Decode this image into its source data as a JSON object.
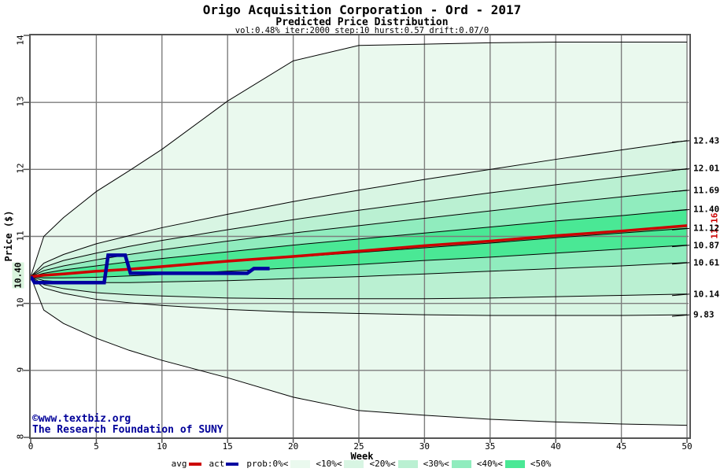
{
  "header": {
    "title": "Origo Acquisition Corporation - Ord - 2017",
    "subtitle": "Predicted Price Distribution",
    "params_line": "vol:0.48% iter:2000 step:10 hurst:0.57 drift:0.07/0"
  },
  "watermark": {
    "line1": "©www.textbiz.org",
    "line2": "The Research Foundation of SUNY",
    "color": "#000099"
  },
  "legend": {
    "items": [
      {
        "label": "avg",
        "swatch": "line",
        "color": "#cc0000"
      },
      {
        "label": "act",
        "swatch": "line",
        "color": "#0000a0"
      },
      {
        "label": "prob:0%<",
        "swatch": "box",
        "color": "#eaf9ee"
      },
      {
        "label": "<10%<",
        "swatch": "box",
        "color": "#d8f5e3"
      },
      {
        "label": "<20%<",
        "swatch": "box",
        "color": "#baf0d2"
      },
      {
        "label": "<30%<",
        "swatch": "box",
        "color": "#90ecbe"
      },
      {
        "label": "<40%<",
        "swatch": "box",
        "color": "#4ae895"
      },
      {
        "label": "<50%",
        "swatch": "none",
        "color": null
      }
    ]
  },
  "chart_data": {
    "type": "line",
    "subtype": "fan-probability-distribution",
    "title": "Origo Acquisition Corporation - Ord - 2017 / Predicted Price Distribution",
    "xlabel": "Week",
    "ylabel": "Price ($)",
    "xlim": [
      0,
      50
    ],
    "ylim": [
      8,
      14
    ],
    "x_ticks": [
      0,
      5,
      10,
      15,
      20,
      25,
      30,
      35,
      40,
      45,
      50
    ],
    "y_ticks": [
      8,
      9,
      10,
      11,
      12,
      13,
      14
    ],
    "grid": true,
    "grid_color": "#7d7d7d",
    "frame_color": "#555555",
    "start_price": 10.4,
    "weeks": [
      0,
      1,
      2.5,
      5,
      7.5,
      10,
      15,
      20,
      25,
      30,
      35,
      40,
      45,
      50
    ],
    "percentile_curves": [
      {
        "name": "max",
        "values": [
          10.4,
          11.0,
          11.28,
          11.67,
          11.98,
          12.3,
          13.02,
          13.62,
          13.85,
          13.87,
          13.89,
          13.9,
          13.9,
          13.9
        ]
      },
      {
        "name": "p90",
        "values": [
          10.4,
          10.6,
          10.73,
          10.89,
          11.01,
          11.13,
          11.33,
          11.52,
          11.69,
          11.85,
          12.0,
          12.15,
          12.29,
          12.43
        ]
      },
      {
        "name": "p80",
        "values": [
          10.4,
          10.54,
          10.64,
          10.75,
          10.85,
          10.94,
          11.1,
          11.25,
          11.39,
          11.52,
          11.65,
          11.77,
          11.89,
          12.01
        ]
      },
      {
        "name": "p70",
        "values": [
          10.4,
          10.49,
          10.56,
          10.65,
          10.73,
          10.8,
          10.93,
          11.05,
          11.16,
          11.27,
          11.38,
          11.49,
          11.59,
          11.69
        ]
      },
      {
        "name": "p60",
        "values": [
          10.4,
          10.45,
          10.5,
          10.56,
          10.62,
          10.67,
          10.77,
          10.87,
          10.96,
          11.05,
          11.14,
          11.23,
          11.31,
          11.4
        ]
      },
      {
        "name": "median",
        "values": [
          10.4,
          10.41,
          10.44,
          10.47,
          10.51,
          10.54,
          10.62,
          10.69,
          10.76,
          10.83,
          10.9,
          10.98,
          11.05,
          11.12
        ]
      },
      {
        "name": "p40",
        "values": [
          10.4,
          10.38,
          10.38,
          10.39,
          10.41,
          10.43,
          10.48,
          10.53,
          10.58,
          10.64,
          10.69,
          10.75,
          10.81,
          10.87
        ]
      },
      {
        "name": "p30",
        "values": [
          10.4,
          10.34,
          10.32,
          10.31,
          10.31,
          10.32,
          10.34,
          10.37,
          10.4,
          10.44,
          10.48,
          10.52,
          10.56,
          10.61
        ]
      },
      {
        "name": "p20",
        "values": [
          10.4,
          10.28,
          10.22,
          10.16,
          10.13,
          10.11,
          10.08,
          10.07,
          10.07,
          10.07,
          10.08,
          10.1,
          10.12,
          10.14
        ]
      },
      {
        "name": "p10",
        "values": [
          10.4,
          10.23,
          10.15,
          10.06,
          10.01,
          9.97,
          9.91,
          9.87,
          9.85,
          9.83,
          9.82,
          9.82,
          9.82,
          9.83
        ]
      },
      {
        "name": "min",
        "values": [
          10.4,
          9.9,
          9.7,
          9.48,
          9.3,
          9.15,
          8.89,
          8.6,
          8.4,
          8.33,
          8.27,
          8.23,
          8.2,
          8.18
        ]
      }
    ],
    "bands": [
      {
        "prob": "0%<10%",
        "upper": "max",
        "lower": "min",
        "color": "#eaf9ee"
      },
      {
        "prob": "10%<20%",
        "upper": "p90",
        "lower": "p10",
        "color": "#d8f5e3"
      },
      {
        "prob": "20%<30%",
        "upper": "p80",
        "lower": "p20",
        "color": "#baf0d2"
      },
      {
        "prob": "30%<40%",
        "upper": "p70",
        "lower": "p30",
        "color": "#90ecbe"
      },
      {
        "prob": "40%<50%",
        "upper": "p60",
        "lower": "p40",
        "color": "#4ae895"
      }
    ],
    "avg_line": {
      "label": "avg",
      "color": "#cc0000",
      "end_label": "11.16",
      "values": [
        10.4,
        10.42,
        10.44,
        10.48,
        10.51,
        10.55,
        10.63,
        10.7,
        10.78,
        10.86,
        10.93,
        11.01,
        11.08,
        11.16
      ]
    },
    "act_line": {
      "label": "act",
      "color": "#0000a0",
      "points": [
        [
          0,
          10.4
        ],
        [
          0.3,
          10.31
        ],
        [
          5.6,
          10.31
        ],
        [
          5.9,
          10.72
        ],
        [
          7.2,
          10.72
        ],
        [
          7.6,
          10.45
        ],
        [
          16.5,
          10.45
        ],
        [
          17.0,
          10.52
        ],
        [
          18.2,
          10.52
        ]
      ]
    },
    "right_axis_labels": [
      {
        "text": "12.43",
        "price": 12.43
      },
      {
        "text": "12.01",
        "price": 12.01
      },
      {
        "text": "11.69",
        "price": 11.69
      },
      {
        "text": "11.40",
        "price": 11.4
      },
      {
        "text": "11.12",
        "price": 11.12
      },
      {
        "text": "10.87",
        "price": 10.87
      },
      {
        "text": "10.61",
        "price": 10.61
      },
      {
        "text": "10.14",
        "price": 10.14
      },
      {
        "text": "9.83",
        "price": 9.83
      }
    ],
    "start_label": {
      "text": "10.40",
      "price": 10.4,
      "bg": "#d9f4dd"
    },
    "avg_end_label": {
      "text": "11.16",
      "price": 11.16,
      "color": "#cc0000"
    }
  }
}
